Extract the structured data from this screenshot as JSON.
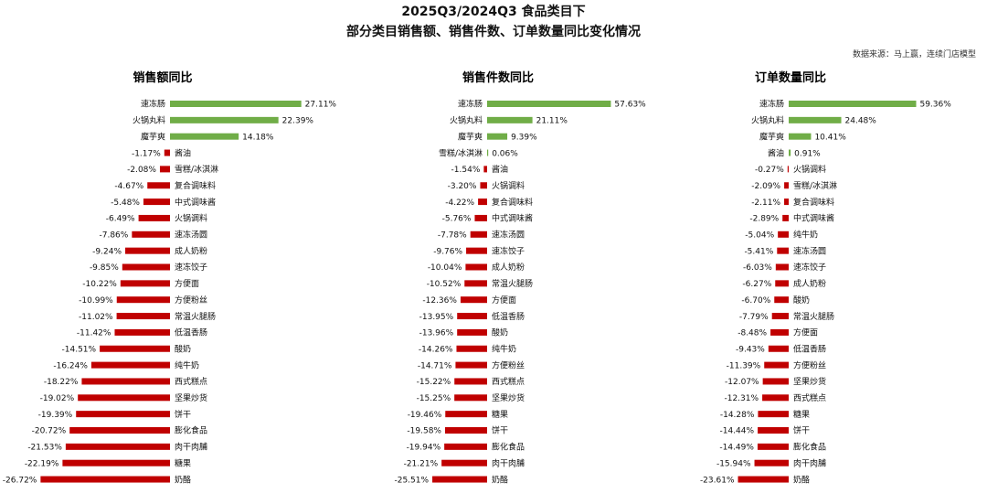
{
  "title": "2025Q3/2024Q3 食品类目下",
  "subtitle": "部分类目销售额、销售件数、订单数量同比变化情况",
  "source": "数据来源：马上赢，连续门店模型",
  "colors": {
    "positive": "#70ad47",
    "negative": "#c00000"
  },
  "chart_data": [
    {
      "type": "bar",
      "orientation": "horizontal",
      "title": "销售额同比",
      "categories": [
        "速冻肠",
        "火锅丸料",
        "魔芋爽",
        "酱油",
        "雪糕/冰淇淋",
        "复合调味料",
        "中式调味酱",
        "火锅调料",
        "速冻汤圆",
        "成人奶粉",
        "速冻饺子",
        "方便面",
        "方便粉丝",
        "常温火腿肠",
        "低温香肠",
        "酸奶",
        "纯牛奶",
        "西式糕点",
        "坚果炒货",
        "饼干",
        "膨化食品",
        "肉干肉脯",
        "糖果",
        "奶酪"
      ],
      "values": [
        27.11,
        22.39,
        14.18,
        -1.17,
        -2.08,
        -4.67,
        -5.48,
        -6.49,
        -7.86,
        -9.24,
        -9.85,
        -10.22,
        -10.99,
        -11.02,
        -11.42,
        -14.51,
        -16.24,
        -18.22,
        -19.02,
        -19.39,
        -20.72,
        -21.53,
        -22.19,
        -26.72
      ],
      "labels": [
        "27.11%",
        "22.39%",
        "14.18%",
        "-1.17%",
        "-2.08%",
        "-4.67%",
        "-5.48%",
        "-6.49%",
        "-7.86%",
        "-9.24%",
        "-9.85%",
        "-10.22%",
        "-10.99%",
        "-11.02%",
        "-11.42%",
        "-14.51%",
        "-16.24%",
        "-18.22%",
        "-19.02%",
        "-19.39%",
        "-20.72%",
        "-21.53%",
        "-22.19%",
        "-26.72%"
      ],
      "unit": "%"
    },
    {
      "type": "bar",
      "orientation": "horizontal",
      "title": "销售件数同比",
      "categories": [
        "速冻肠",
        "火锅丸料",
        "魔芋爽",
        "雪糕/冰淇淋",
        "酱油",
        "火锅调料",
        "复合调味料",
        "中式调味酱",
        "速冻汤圆",
        "速冻饺子",
        "成人奶粉",
        "常温火腿肠",
        "方便面",
        "低温香肠",
        "酸奶",
        "纯牛奶",
        "方便粉丝",
        "西式糕点",
        "坚果炒货",
        "糖果",
        "饼干",
        "膨化食品",
        "肉干肉脯",
        "奶酪"
      ],
      "values": [
        57.63,
        21.11,
        9.39,
        0.06,
        -1.54,
        -3.2,
        -4.22,
        -5.76,
        -7.78,
        -9.76,
        -10.04,
        -10.52,
        -12.36,
        -13.95,
        -13.96,
        -14.26,
        -14.71,
        -15.22,
        -15.25,
        -19.46,
        -19.58,
        -19.94,
        -21.21,
        -25.51
      ],
      "labels": [
        "57.63%",
        "21.11%",
        "9.39%",
        "0.06%",
        "-1.54%",
        "-3.20%",
        "-4.22%",
        "-5.76%",
        "-7.78%",
        "-9.76%",
        "-10.04%",
        "-10.52%",
        "-12.36%",
        "-13.95%",
        "-13.96%",
        "-14.26%",
        "-14.71%",
        "-15.22%",
        "-15.25%",
        "-19.46%",
        "-19.58%",
        "-19.94%",
        "-21.21%",
        "-25.51%"
      ],
      "unit": "%"
    },
    {
      "type": "bar",
      "orientation": "horizontal",
      "title": "订单数量同比",
      "categories": [
        "速冻肠",
        "火锅丸料",
        "魔芋爽",
        "酱油",
        "火锅调料",
        "雪糕/冰淇淋",
        "复合调味料",
        "中式调味酱",
        "纯牛奶",
        "速冻汤圆",
        "速冻饺子",
        "成人奶粉",
        "酸奶",
        "常温火腿肠",
        "方便面",
        "低温香肠",
        "方便粉丝",
        "坚果炒货",
        "西式糕点",
        "糖果",
        "饼干",
        "膨化食品",
        "肉干肉脯",
        "奶酪"
      ],
      "values": [
        59.36,
        24.48,
        10.41,
        0.91,
        -0.27,
        -2.09,
        -2.11,
        -2.89,
        -5.04,
        -5.41,
        -6.03,
        -6.27,
        -6.7,
        -7.79,
        -8.48,
        -9.43,
        -11.39,
        -12.07,
        -12.31,
        -14.28,
        -14.44,
        -14.49,
        -15.94,
        -23.61
      ],
      "labels": [
        "59.36%",
        "24.48%",
        "10.41%",
        "0.91%",
        "-0.27%",
        "-2.09%",
        "-2.11%",
        "-2.89%",
        "-5.04%",
        "-5.41%",
        "-6.03%",
        "-6.27%",
        "-6.70%",
        "-7.79%",
        "-8.48%",
        "-9.43%",
        "-11.39%",
        "-12.07%",
        "-12.31%",
        "-14.28%",
        "-14.44%",
        "-14.49%",
        "-15.94%",
        "-23.61%"
      ],
      "unit": "%"
    }
  ]
}
